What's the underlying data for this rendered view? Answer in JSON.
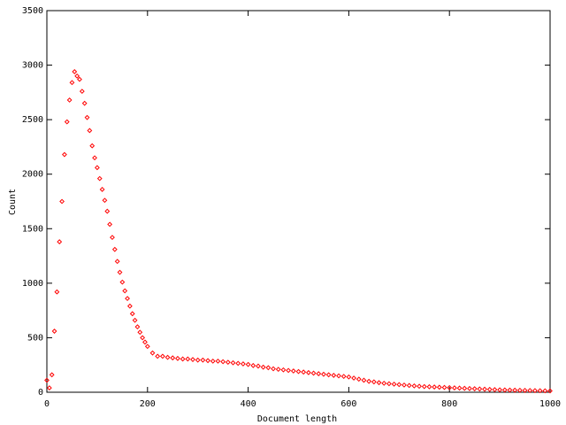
{
  "chart_data": {
    "type": "scatter",
    "xlabel": "Document length",
    "ylabel": "Count",
    "series": [
      {
        "color": "#ff0000",
        "x": [
          0,
          5,
          10,
          15,
          20,
          25,
          30,
          35,
          40,
          45,
          50,
          55,
          60,
          65,
          70,
          75,
          80,
          85,
          90,
          95,
          100,
          105,
          110,
          115,
          120,
          125,
          130,
          135,
          140,
          145,
          150,
          155,
          160,
          165,
          170,
          175,
          180,
          185,
          190,
          195,
          200,
          210,
          220,
          230,
          240,
          250,
          260,
          270,
          280,
          290,
          300,
          310,
          320,
          330,
          340,
          350,
          360,
          370,
          380,
          390,
          400,
          410,
          420,
          430,
          440,
          450,
          460,
          470,
          480,
          490,
          500,
          510,
          520,
          530,
          540,
          550,
          560,
          570,
          580,
          590,
          600,
          610,
          620,
          630,
          640,
          650,
          660,
          670,
          680,
          690,
          700,
          710,
          720,
          730,
          740,
          750,
          760,
          770,
          780,
          790,
          800,
          810,
          820,
          830,
          840,
          850,
          860,
          870,
          880,
          890,
          900,
          910,
          920,
          930,
          940,
          950,
          960,
          970,
          980,
          990,
          1000
        ],
        "values": [
          110,
          40,
          160,
          560,
          920,
          1380,
          1750,
          2180,
          2480,
          2680,
          2840,
          2940,
          2900,
          2870,
          2760,
          2650,
          2520,
          2400,
          2260,
          2150,
          2060,
          1960,
          1860,
          1760,
          1660,
          1540,
          1420,
          1310,
          1200,
          1100,
          1010,
          930,
          860,
          790,
          720,
          660,
          600,
          550,
          500,
          460,
          420,
          360,
          330,
          330,
          320,
          315,
          310,
          305,
          305,
          300,
          295,
          295,
          290,
          285,
          285,
          280,
          275,
          270,
          265,
          260,
          255,
          245,
          240,
          230,
          225,
          215,
          210,
          205,
          200,
          195,
          190,
          185,
          180,
          175,
          170,
          165,
          160,
          155,
          150,
          145,
          140,
          130,
          120,
          110,
          100,
          95,
          88,
          82,
          78,
          74,
          70,
          66,
          62,
          58,
          55,
          52,
          50,
          48,
          46,
          44,
          42,
          40,
          38,
          36,
          34,
          32,
          30,
          28,
          26,
          24,
          22,
          21,
          20,
          19,
          18,
          17,
          16,
          15,
          14,
          13,
          12
        ]
      }
    ],
    "xlim": [
      0,
      1000
    ],
    "xticks": [
      0,
      200,
      400,
      600,
      800,
      1000
    ],
    "ylim": [
      0,
      3500
    ],
    "yticks": [
      0,
      500,
      1000,
      1500,
      2000,
      2500,
      3000,
      3500
    ]
  }
}
